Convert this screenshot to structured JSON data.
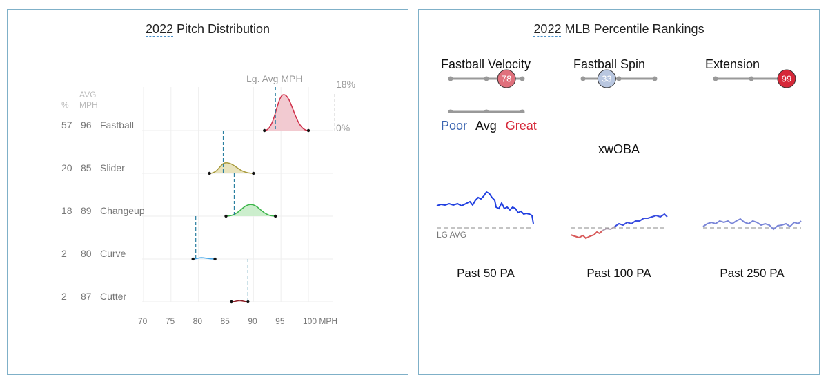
{
  "left": {
    "title_year": "2022",
    "title_rest": " Pitch Distribution",
    "hdr_pct": "%",
    "hdr_avg": "AVG",
    "hdr_mph": "MPH",
    "lg_avg_label": "Lg. Avg MPH",
    "scale_top": "18%",
    "scale_bottom": "0%"
  },
  "right": {
    "title_year": "2022",
    "title_rest": " MLB Percentile Rankings",
    "legend": {
      "poor": "Poor",
      "avg": "Avg",
      "great": "Great"
    },
    "xwoba_title": "xwOBA",
    "lg_avg": "LG AVG",
    "windows": [
      "Past 50 PA",
      "Past 100 PA",
      "Past 250 PA"
    ]
  },
  "percentiles": [
    {
      "name": "Fastball Velocity",
      "value": 78,
      "color": "#e0707c"
    },
    {
      "name": "Fastball Spin",
      "value": 33,
      "color": "#b9c7e0"
    },
    {
      "name": "Extension",
      "value": 99,
      "color": "#d62839"
    }
  ],
  "colors": {
    "poor": "#3a64b0",
    "great": "#d62839",
    "axis": "#4a90c8"
  },
  "chart_data": {
    "type": "area",
    "title": "2022 Pitch Distribution",
    "xlabel": "MPH",
    "xlim": [
      70,
      100
    ],
    "x_ticks": [
      70,
      75,
      80,
      85,
      90,
      95,
      100
    ],
    "x_tick_labels": [
      "70",
      "75",
      "80",
      "85",
      "90",
      "95",
      "100 MPH"
    ],
    "ylim_percent": [
      0,
      18
    ],
    "series": [
      {
        "name": "Fastball",
        "pct": 57,
        "avg_mph": 96,
        "lg_avg_mph": 94,
        "min": 92,
        "max": 100,
        "peak_mph": 95.5,
        "peak_pct": 17,
        "color": "#d0304a",
        "fill": "#f1c4cc"
      },
      {
        "name": "Slider",
        "pct": 20,
        "avg_mph": 85,
        "lg_avg_mph": 84.5,
        "min": 82,
        "max": 90,
        "peak_mph": 85,
        "peak_pct": 5,
        "color": "#a89a3c",
        "fill": "#e6e0b6"
      },
      {
        "name": "Changeup",
        "pct": 18,
        "avg_mph": 89,
        "lg_avg_mph": 86.5,
        "min": 85,
        "max": 94,
        "peak_mph": 89.5,
        "peak_pct": 5.5,
        "color": "#3cb54a",
        "fill": "#c6ecc8"
      },
      {
        "name": "Curve",
        "pct": 2,
        "avg_mph": 80,
        "lg_avg_mph": 79.5,
        "min": 79,
        "max": 83,
        "peak_mph": 80.5,
        "peak_pct": 0.4,
        "color": "#46a6e8",
        "fill": "#d6ecfa"
      },
      {
        "name": "Cutter",
        "pct": 2,
        "avg_mph": 87,
        "lg_avg_mph": 89,
        "min": 86,
        "max": 89,
        "peak_mph": 87.5,
        "peak_pct": 0.3,
        "color": "#8b1c24",
        "fill": "#e8c8c8"
      }
    ]
  }
}
